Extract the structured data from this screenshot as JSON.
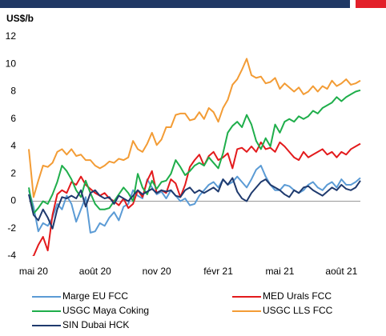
{
  "chart_data": {
    "type": "line",
    "y_label": "US$/b",
    "categories": [
      null,
      "mai 20",
      null,
      null,
      null,
      null,
      null,
      null,
      null,
      null,
      null,
      null,
      null,
      null,
      "août 20",
      null,
      null,
      null,
      null,
      null,
      null,
      null,
      null,
      null,
      null,
      null,
      null,
      "nov 20",
      null,
      null,
      null,
      null,
      null,
      null,
      null,
      null,
      null,
      null,
      null,
      null,
      "févr 21",
      null,
      null,
      null,
      null,
      null,
      null,
      null,
      null,
      null,
      null,
      null,
      null,
      "mai 21",
      null,
      null,
      null,
      null,
      null,
      null,
      null,
      null,
      null,
      null,
      null,
      null,
      "août 21",
      null,
      null,
      null,
      null
    ],
    "series": [
      {
        "name": "Marge EU FCC",
        "color": "#5b9bd5",
        "values": [
          0.8,
          -0.4,
          -2.2,
          -1.6,
          -1.8,
          -1.2,
          -0.2,
          -0.6,
          0.4,
          -0.2,
          -1.5,
          -0.6,
          0.3,
          -2.3,
          -2.2,
          -1.6,
          -1.8,
          -1.2,
          -0.8,
          -1.4,
          -0.4,
          -0.2,
          0.8,
          0.4,
          0.2,
          1.6,
          1.0,
          0.5,
          0.7,
          0.2,
          0.8,
          0.4,
          0.0,
          0.2,
          -0.3,
          -0.2,
          0.4,
          0.8,
          1.2,
          1.4,
          1.0,
          1.6,
          1.2,
          1.4,
          1.8,
          1.4,
          1.0,
          1.6,
          2.3,
          2.6,
          1.8,
          1.2,
          0.8,
          0.8,
          1.2,
          1.1,
          0.8,
          0.6,
          0.8,
          1.2,
          1.4,
          1.0,
          0.8,
          1.2,
          1.4,
          1.0,
          1.6,
          1.2,
          1.2,
          1.4,
          1.7
        ]
      },
      {
        "name": "MED Urals FCC",
        "color": "#e31a1c",
        "values": [
          -4.2,
          -4.0,
          -3.2,
          -2.6,
          -3.6,
          -1.0,
          0.5,
          0.8,
          0.6,
          1.4,
          1.2,
          1.8,
          1.2,
          0.9,
          0.6,
          0.4,
          0.6,
          0.2,
          0.0,
          -0.3,
          0.2,
          -0.5,
          -0.2,
          0.8,
          0.3,
          1.5,
          2.2,
          0.6,
          0.8,
          0.6,
          1.6,
          1.3,
          0.3,
          1.2,
          2.5,
          3.0,
          3.4,
          2.6,
          3.3,
          3.6,
          3.0,
          3.2,
          3.5,
          2.4,
          3.8,
          3.9,
          3.6,
          4.0,
          3.6,
          4.3,
          3.8,
          3.9,
          3.6,
          4.3,
          4.0,
          3.6,
          3.2,
          3.0,
          3.6,
          3.2,
          3.4,
          3.6,
          3.8,
          3.4,
          3.6,
          3.2,
          3.6,
          3.4,
          3.8,
          4.0,
          4.2
        ]
      },
      {
        "name": "USGC Maya Coking",
        "color": "#1fae4b",
        "values": [
          1.0,
          -0.9,
          -0.5,
          0.0,
          -0.2,
          0.5,
          1.4,
          2.6,
          2.2,
          1.6,
          0.8,
          0.3,
          1.5,
          0.6,
          -0.2,
          -0.6,
          -0.6,
          -0.5,
          0.0,
          0.5,
          1.0,
          0.6,
          0.0,
          2.0,
          1.0,
          0.5,
          1.5,
          0.9,
          1.4,
          1.5,
          2.0,
          3.0,
          2.5,
          1.9,
          2.2,
          2.6,
          2.8,
          2.6,
          3.2,
          2.8,
          2.4,
          3.5,
          5.0,
          5.5,
          5.8,
          5.4,
          6.3,
          5.6,
          4.4,
          3.8,
          4.6,
          4.0,
          5.6,
          5.0,
          5.8,
          6.0,
          5.8,
          6.2,
          6.0,
          6.2,
          6.6,
          6.4,
          6.8,
          7.0,
          7.2,
          7.6,
          7.3,
          7.6,
          7.8,
          8.0,
          8.1
        ]
      },
      {
        "name": "USGC LLS FCC",
        "color": "#f39c35",
        "values": [
          3.8,
          0.3,
          1.5,
          2.6,
          2.5,
          2.8,
          3.6,
          3.8,
          3.4,
          3.8,
          3.3,
          3.4,
          3.0,
          3.0,
          2.6,
          2.4,
          2.6,
          2.9,
          2.8,
          3.1,
          3.0,
          3.2,
          4.4,
          3.8,
          3.6,
          4.2,
          5.0,
          4.1,
          4.5,
          5.4,
          5.4,
          6.3,
          6.4,
          6.4,
          5.9,
          6.0,
          6.5,
          6.0,
          6.8,
          6.5,
          5.8,
          6.8,
          7.4,
          8.5,
          8.9,
          9.6,
          10.4,
          9.2,
          9.0,
          9.1,
          8.6,
          8.7,
          9.0,
          8.2,
          8.6,
          8.3,
          8.0,
          8.3,
          7.8,
          8.0,
          8.4,
          8.0,
          8.4,
          8.2,
          8.8,
          8.4,
          8.6,
          8.9,
          8.5,
          8.6,
          8.8
        ]
      },
      {
        "name": "SIN Dubai HCK",
        "color": "#1f3a6e",
        "values": [
          0.5,
          -1.0,
          -1.4,
          -0.6,
          -1.2,
          -2.0,
          -0.6,
          0.3,
          0.2,
          0.4,
          0.2,
          0.8,
          -0.4,
          0.6,
          0.8,
          0.4,
          0.2,
          0.3,
          -0.2,
          0.4,
          0.2,
          0.0,
          0.4,
          0.8,
          0.5,
          0.7,
          0.9,
          0.6,
          0.8,
          0.7,
          0.8,
          0.4,
          0.3,
          0.8,
          1.0,
          0.6,
          0.8,
          0.6,
          0.8,
          1.0,
          0.7,
          1.6,
          1.2,
          1.7,
          0.7,
          0.2,
          0.0,
          0.6,
          1.0,
          1.4,
          1.6,
          1.2,
          1.0,
          0.8,
          0.5,
          0.3,
          0.8,
          0.6,
          1.0,
          1.1,
          0.8,
          0.6,
          0.4,
          0.7,
          1.0,
          0.8,
          1.2,
          0.9,
          0.8,
          1.0,
          1.5
        ]
      }
    ],
    "ylim": [
      -4,
      12
    ],
    "yticks": [
      -4,
      -2,
      0,
      2,
      4,
      6,
      8,
      10,
      12
    ],
    "grid": false,
    "legend": "bottom"
  }
}
